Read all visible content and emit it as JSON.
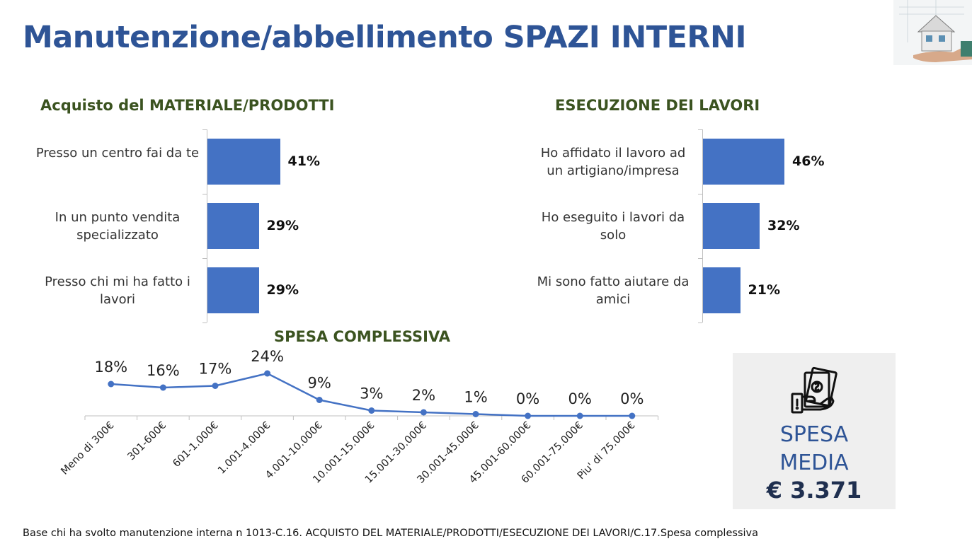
{
  "page": {
    "title": "Manutenzione/abbellimento SPAZI INTERNI",
    "footnote": "Base chi ha svolto manutenzione interna n 1013-C.16. ACQUISTO DEL MATERIALE/PRODOTTI/ESECUZIONE DEI LAVORI/C.17.Spesa complessiva"
  },
  "colors": {
    "title": "#2e5496",
    "section_title": "#3b5320",
    "bar": "#4472c4",
    "line": "#4472c4",
    "box_background": "#efefef"
  },
  "spesa_media": {
    "label_line1": "SPESA",
    "label_line2": "MEDIA",
    "value": "€ 3.371",
    "icon": "money-hand-icon"
  },
  "chart_data": [
    {
      "type": "bar",
      "orientation": "horizontal",
      "title": "Acquisto del MATERIALE/PRODOTTI",
      "categories": [
        "Presso un centro fai da te",
        "In un punto vendita specializzato",
        "Presso chi mi ha fatto i lavori"
      ],
      "values": [
        41,
        29,
        29
      ],
      "value_labels": [
        "41%",
        "29%",
        "29%"
      ],
      "xlim": [
        0,
        100
      ],
      "grid": false
    },
    {
      "type": "bar",
      "orientation": "horizontal",
      "title": "ESECUZIONE DEI LAVORI",
      "categories": [
        "Ho affidato il lavoro ad un artigiano/impresa",
        "Ho eseguito i lavori  da solo",
        "Mi sono fatto aiutare da amici"
      ],
      "values": [
        46,
        32,
        21
      ],
      "value_labels": [
        "46%",
        "32%",
        "21%"
      ],
      "xlim": [
        0,
        100
      ],
      "grid": false
    },
    {
      "type": "line",
      "title": "SPESA COMPLESSIVA",
      "categories": [
        "Meno di 300€",
        "301-600€",
        "601-1.000€",
        "1.001-4.000€",
        "4.001-10.000€",
        "10.001-15.000€",
        "15.001-30.000€",
        "30.001-45.000€",
        "45.001-60.000€",
        "60.001-75.000€",
        "Piu' di 75.000€"
      ],
      "values": [
        18,
        16,
        17,
        24,
        9,
        3,
        2,
        1,
        0,
        0,
        0
      ],
      "value_labels": [
        "18%",
        "16%",
        "17%",
        "24%",
        "9%",
        "3%",
        "2%",
        "1%",
        "0%",
        "0%",
        "0%"
      ],
      "ylim": [
        0,
        60
      ],
      "grid": false
    }
  ]
}
